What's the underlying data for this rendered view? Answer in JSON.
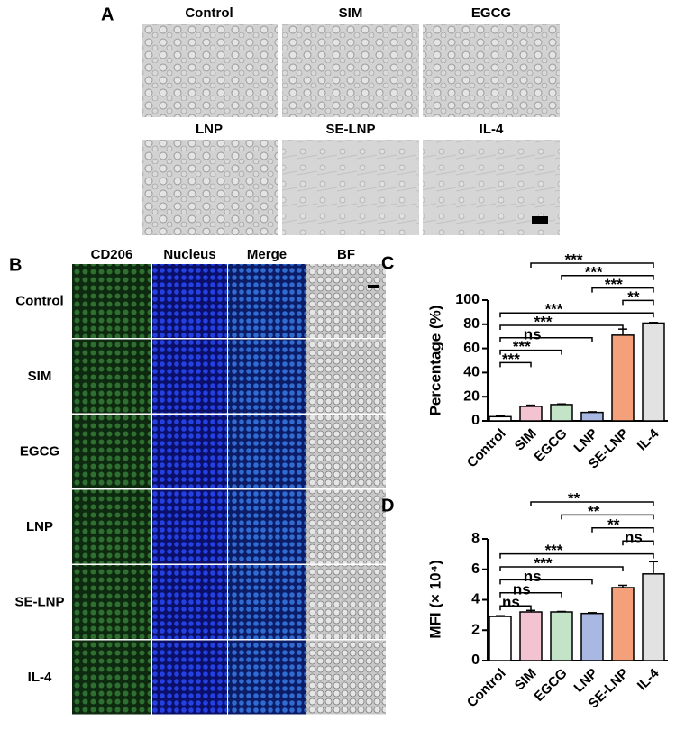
{
  "panel_a": {
    "label": "A",
    "images": [
      "Control",
      "SIM",
      "EGCG",
      "LNP",
      "SE-LNP",
      "IL-4"
    ]
  },
  "panel_b": {
    "label": "B",
    "columns": [
      "CD206",
      "Nucleus",
      "Merge",
      "BF"
    ],
    "rows": [
      "Control",
      "SIM",
      "EGCG",
      "LNP",
      "SE-LNP",
      "IL-4"
    ]
  },
  "chart_data": [
    {
      "type": "bar",
      "panel": "C",
      "ylabel": "Percentage (%)",
      "categories": [
        "Control",
        "SIM",
        "EGCG",
        "LNP",
        "SE-LNP",
        "IL-4"
      ],
      "values": [
        3.5,
        12,
        13.5,
        7,
        71,
        81
      ],
      "errors": [
        0.5,
        1,
        0.5,
        0.5,
        5,
        0.5
      ],
      "colors": [
        "#ffffff",
        "#f4c3d1",
        "#c4e4c7",
        "#a9b8e3",
        "#f4a17b",
        "#e2e2e2"
      ],
      "ylim": [
        0,
        100
      ],
      "yticks": [
        0,
        20,
        40,
        60,
        80,
        100
      ],
      "significance": [
        {
          "groups": [
            "SIM",
            "IL-4"
          ],
          "label": "***"
        },
        {
          "groups": [
            "EGCG",
            "IL-4"
          ],
          "label": "***"
        },
        {
          "groups": [
            "LNP",
            "IL-4"
          ],
          "label": "***"
        },
        {
          "groups": [
            "SE-LNP",
            "IL-4"
          ],
          "label": "**"
        },
        {
          "groups": [
            "Control",
            "IL-4"
          ],
          "label": "***"
        },
        {
          "groups": [
            "Control",
            "SE-LNP"
          ],
          "label": "***"
        },
        {
          "groups": [
            "Control",
            "LNP"
          ],
          "label": "ns"
        },
        {
          "groups": [
            "Control",
            "EGCG"
          ],
          "label": "***"
        },
        {
          "groups": [
            "Control",
            "SIM"
          ],
          "label": "***"
        }
      ]
    },
    {
      "type": "bar",
      "panel": "D",
      "ylabel": "MFI (× 10⁴)",
      "categories": [
        "Control",
        "SIM",
        "EGCG",
        "LNP",
        "SE-LNP",
        "IL-4"
      ],
      "values": [
        2.9,
        3.2,
        3.2,
        3.1,
        4.8,
        5.7
      ],
      "errors": [
        0.05,
        0.1,
        0.03,
        0.05,
        0.15,
        0.8
      ],
      "colors": [
        "#ffffff",
        "#f4c3d1",
        "#c4e4c7",
        "#a9b8e3",
        "#f4a17b",
        "#e2e2e2"
      ],
      "ylim": [
        0,
        8
      ],
      "yticks": [
        0,
        2,
        4,
        6,
        8
      ],
      "significance": [
        {
          "groups": [
            "SIM",
            "IL-4"
          ],
          "label": "**"
        },
        {
          "groups": [
            "EGCG",
            "IL-4"
          ],
          "label": "**"
        },
        {
          "groups": [
            "LNP",
            "IL-4"
          ],
          "label": "**"
        },
        {
          "groups": [
            "SE-LNP",
            "IL-4"
          ],
          "label": "ns"
        },
        {
          "groups": [
            "Control",
            "IL-4"
          ],
          "label": "***"
        },
        {
          "groups": [
            "Control",
            "SE-LNP"
          ],
          "label": "***"
        },
        {
          "groups": [
            "Control",
            "LNP"
          ],
          "label": "ns"
        },
        {
          "groups": [
            "Control",
            "EGCG"
          ],
          "label": "ns"
        },
        {
          "groups": [
            "Control",
            "SIM"
          ],
          "label": "ns"
        }
      ]
    }
  ]
}
